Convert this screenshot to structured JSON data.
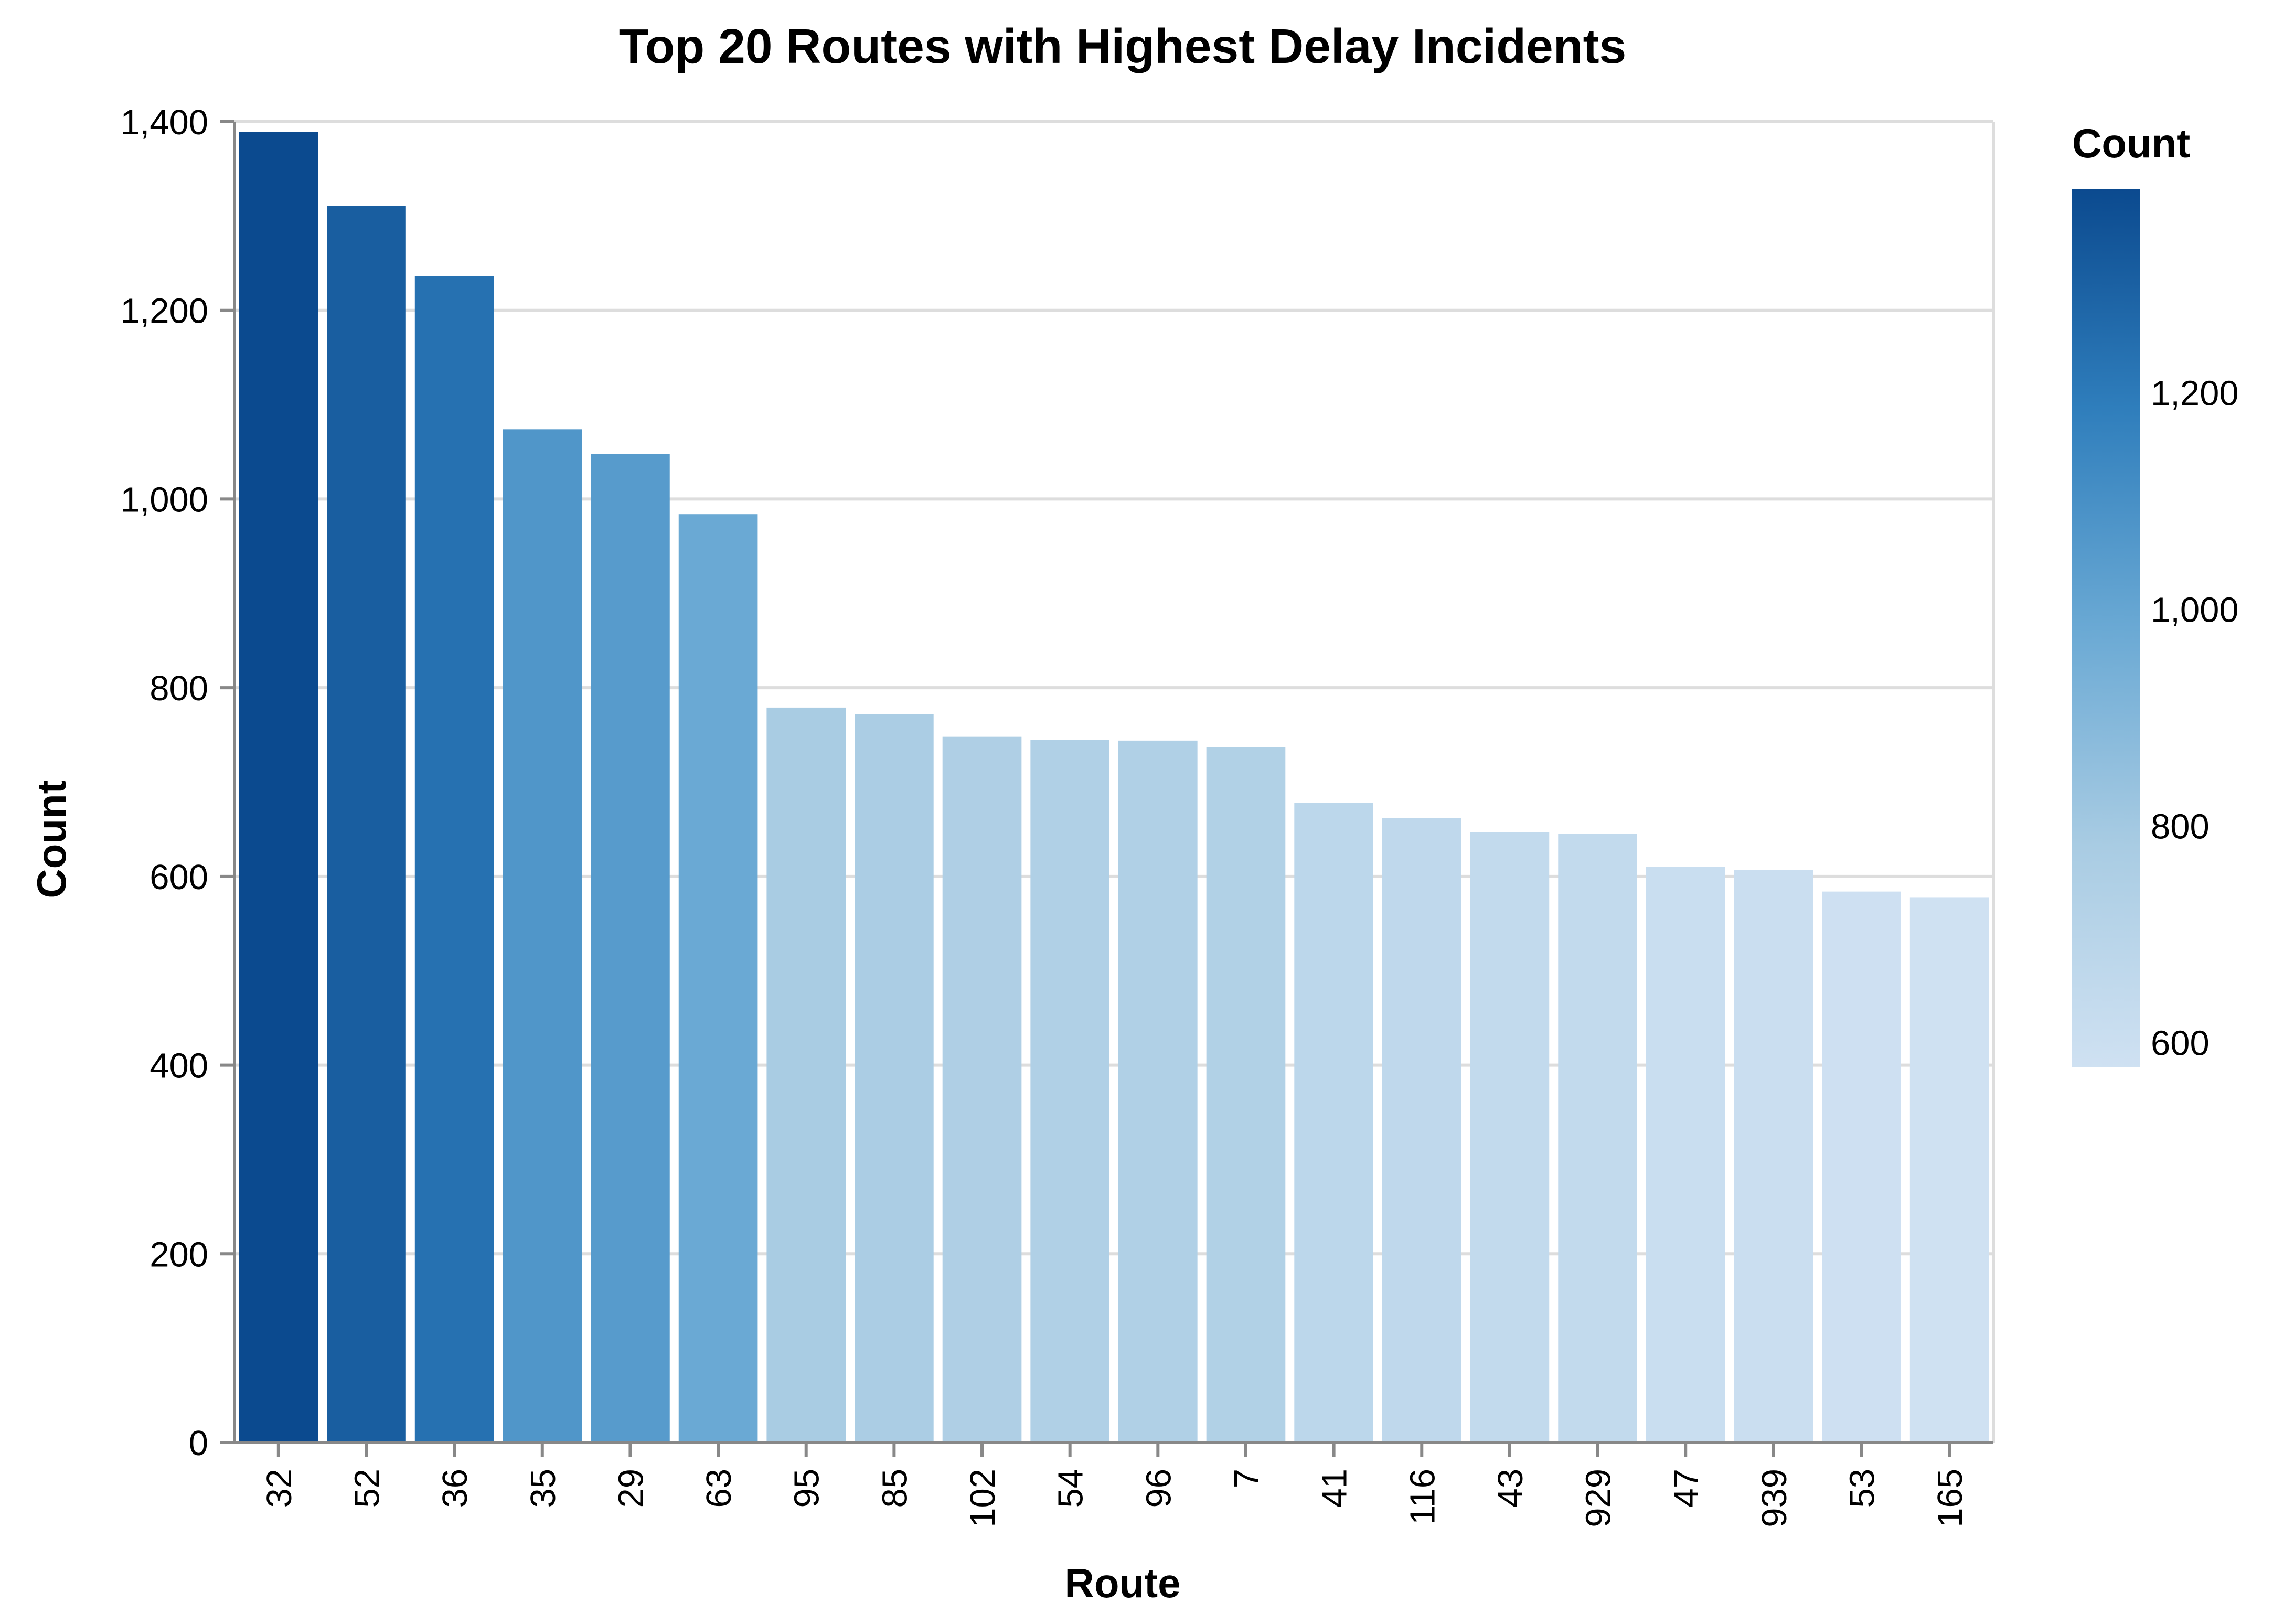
{
  "chart_data": {
    "type": "bar",
    "title": "Top 20 Routes with Highest Delay Incidents",
    "xlabel": "Route",
    "ylabel": "Count",
    "categories": [
      "32",
      "52",
      "36",
      "35",
      "29",
      "63",
      "95",
      "85",
      "102",
      "54",
      "96",
      "7",
      "41",
      "116",
      "43",
      "929",
      "47",
      "939",
      "53",
      "165"
    ],
    "values": [
      1389,
      1311,
      1236,
      1074,
      1048,
      984,
      779,
      772,
      748,
      745,
      744,
      737,
      678,
      662,
      647,
      645,
      610,
      607,
      584,
      578
    ],
    "ylim": [
      0,
      1400
    ],
    "yticks": [
      0,
      200,
      400,
      600,
      800,
      1000,
      1200,
      1400
    ],
    "ytick_labels": [
      "0",
      "200",
      "400",
      "600",
      "800",
      "1,000",
      "1,200",
      "1,400"
    ],
    "grid": true,
    "color_scale": {
      "scheme": "blues",
      "domain": [
        578,
        1389
      ],
      "low_color": "#cfe1f2",
      "high_color": "#0b4a8f"
    },
    "legend": {
      "title": "Count",
      "placement": "right",
      "ticks": [
        1200,
        1000,
        800,
        600
      ],
      "tick_labels": [
        "1,200",
        "1,000",
        "800",
        "600"
      ]
    }
  }
}
